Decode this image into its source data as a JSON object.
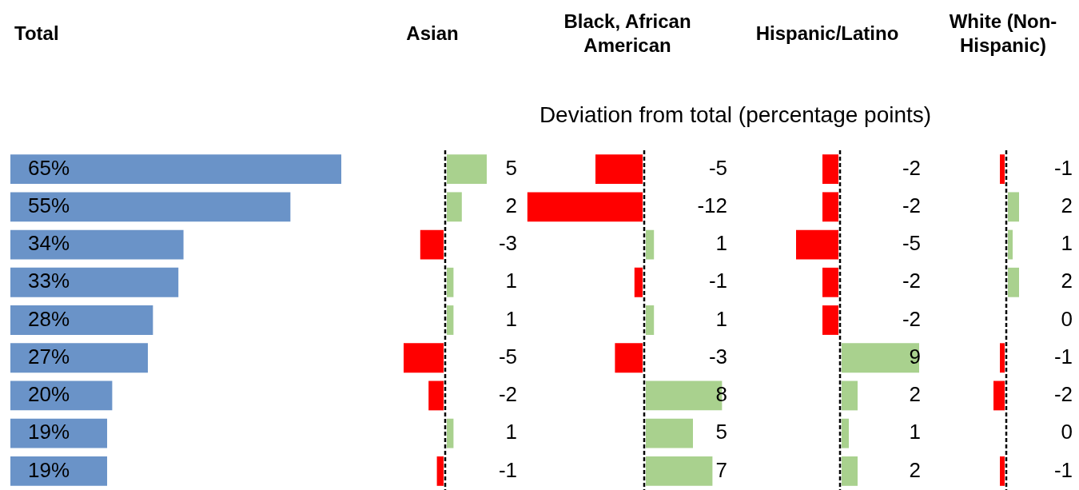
{
  "chart_data": [
    {
      "type": "bar",
      "orientation": "horizontal",
      "title": "Total",
      "categories": [
        null,
        null,
        null,
        null,
        null,
        null,
        null,
        null,
        null
      ],
      "values": [
        65,
        55,
        34,
        33,
        28,
        27,
        20,
        19,
        19
      ],
      "value_labels": [
        "65%",
        "55%",
        "34%",
        "33%",
        "28%",
        "27%",
        "20%",
        "19%",
        "19%"
      ],
      "color": "#6a93c8",
      "tick_labels": false,
      "legend": false
    },
    {
      "type": "bar",
      "orientation": "horizontal",
      "title": "Asian",
      "annotations": [
        "Deviation from total (percentage points)"
      ],
      "categories": [
        null,
        null,
        null,
        null,
        null,
        null,
        null,
        null,
        null
      ],
      "values": [
        5,
        2,
        -3,
        1,
        1,
        -5,
        -2,
        1,
        -1
      ],
      "colors": [
        "#a9d18e",
        "#a9d18e",
        "#ff0000",
        "#a9d18e",
        "#a9d18e",
        "#ff0000",
        "#ff0000",
        "#a9d18e",
        "#ff0000"
      ],
      "tick_labels": false,
      "legend": false,
      "data_labels": true,
      "ref_lines": [
        {
          "axis": "x",
          "value": 0,
          "color": "#000000",
          "line_style": "dashed"
        }
      ]
    },
    {
      "type": "bar",
      "orientation": "horizontal",
      "title": "Black, African American",
      "categories": [
        null,
        null,
        null,
        null,
        null,
        null,
        null,
        null,
        null
      ],
      "values": [
        -5,
        -12,
        1,
        -1,
        1,
        -3,
        8,
        5,
        7
      ],
      "colors": [
        "#ff0000",
        "#ff0000",
        "#a9d18e",
        "#ff0000",
        "#a9d18e",
        "#ff0000",
        "#a9d18e",
        "#a9d18e",
        "#a9d18e"
      ],
      "tick_labels": false,
      "legend": false,
      "data_labels": true,
      "ref_lines": [
        {
          "axis": "x",
          "value": 0,
          "color": "#000000",
          "line_style": "dashed"
        }
      ]
    },
    {
      "type": "bar",
      "orientation": "horizontal",
      "title": "Hispanic/Latino",
      "categories": [
        null,
        null,
        null,
        null,
        null,
        null,
        null,
        null,
        null
      ],
      "values": [
        -2,
        -2,
        -5,
        -2,
        -2,
        9,
        2,
        1,
        2
      ],
      "colors": [
        "#ff0000",
        "#ff0000",
        "#ff0000",
        "#ff0000",
        "#ff0000",
        "#a9d18e",
        "#a9d18e",
        "#a9d18e",
        "#a9d18e"
      ],
      "tick_labels": false,
      "legend": false,
      "data_labels": true,
      "ref_lines": [
        {
          "axis": "x",
          "value": 0,
          "color": "#000000",
          "line_style": "dashed"
        }
      ]
    },
    {
      "type": "bar",
      "orientation": "horizontal",
      "title": "White (Non-Hispanic)",
      "categories": [
        null,
        null,
        null,
        null,
        null,
        null,
        null,
        null,
        null
      ],
      "values": [
        -1,
        2,
        1,
        2,
        0,
        -1,
        -2,
        0,
        -1
      ],
      "colors": [
        "#ff0000",
        "#a9d18e",
        "#a9d18e",
        "#a9d18e",
        "#a9d18e",
        "#ff0000",
        "#ff0000",
        "#a9d18e",
        "#ff0000"
      ],
      "tick_labels": false,
      "legend": false,
      "data_labels": true,
      "ref_lines": [
        {
          "axis": "x",
          "value": 0,
          "color": "#000000",
          "line_style": "dashed"
        }
      ]
    }
  ]
}
